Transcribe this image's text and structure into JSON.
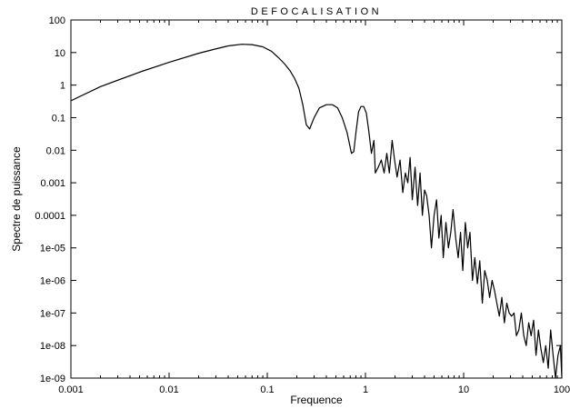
{
  "chart_data": {
    "type": "line",
    "title": "DEFOCALISATION",
    "xlabel": "Frequence",
    "ylabel": "Spectre de puissance",
    "xscale": "log",
    "yscale": "log",
    "xlim": [
      0.001,
      100
    ],
    "ylim": [
      1e-09,
      100
    ],
    "grid": false,
    "legend": "none",
    "x_ticks": [
      {
        "value": 0.001,
        "label": "0.001"
      },
      {
        "value": 0.01,
        "label": "0.01"
      },
      {
        "value": 0.1,
        "label": "0.1"
      },
      {
        "value": 1,
        "label": "1"
      },
      {
        "value": 10,
        "label": "10"
      },
      {
        "value": 100,
        "label": "100"
      }
    ],
    "y_ticks": [
      {
        "value": 100,
        "label": "100"
      },
      {
        "value": 10,
        "label": "10"
      },
      {
        "value": 1,
        "label": "1"
      },
      {
        "value": 0.1,
        "label": "0.1"
      },
      {
        "value": 0.01,
        "label": "0.01"
      },
      {
        "value": 0.001,
        "label": "0.001"
      },
      {
        "value": 0.0001,
        "label": "0.0001"
      },
      {
        "value": 1e-05,
        "label": "1e-05"
      },
      {
        "value": 1e-06,
        "label": "1e-06"
      },
      {
        "value": 1e-07,
        "label": "1e-07"
      },
      {
        "value": 1e-08,
        "label": "1e-08"
      },
      {
        "value": 1e-09,
        "label": "1e-09"
      }
    ],
    "series": [
      {
        "color": "#000000",
        "x": [
          0.001,
          0.002,
          0.005,
          0.01,
          0.02,
          0.03,
          0.04,
          0.055,
          0.07,
          0.09,
          0.11,
          0.13,
          0.15,
          0.17,
          0.19,
          0.21,
          0.23,
          0.25,
          0.27,
          0.3,
          0.34,
          0.4,
          0.46,
          0.52,
          0.58,
          0.65,
          0.72,
          0.76,
          0.8,
          0.85,
          0.9,
          0.96,
          1.02,
          1.08,
          1.15,
          1.22,
          1.26,
          1.35,
          1.45,
          1.55,
          1.65,
          1.75,
          1.87,
          1.98,
          2.1,
          2.25,
          2.4,
          2.55,
          2.7,
          2.85,
          3.0,
          3.2,
          3.4,
          3.6,
          3.8,
          4.0,
          4.2,
          4.45,
          4.7,
          5.0,
          5.3,
          5.6,
          5.9,
          6.2,
          6.6,
          7.0,
          7.4,
          7.8,
          8.3,
          8.8,
          9.3,
          9.8,
          10.4,
          11.0,
          11.6,
          12.3,
          13.0,
          13.8,
          14.6,
          15.5,
          16.4,
          17.4,
          18.4,
          19.5,
          20.6,
          21.8,
          23.1,
          24.5,
          26.0,
          27.5,
          29.1,
          30.8,
          32.6,
          34.5,
          36.5,
          38.7,
          41.0,
          43.4,
          46.0,
          48.7,
          51.6,
          54.6,
          57.8,
          61.2,
          64.8,
          68.6,
          72.7,
          77.0,
          81.5,
          86.3,
          91.4,
          96.8,
          100
        ],
        "y": [
          0.33,
          0.9,
          2.5,
          5,
          9.5,
          13,
          16,
          18,
          17.5,
          15,
          11,
          7,
          4.5,
          2.8,
          1.6,
          0.8,
          0.25,
          0.06,
          0.045,
          0.1,
          0.2,
          0.25,
          0.25,
          0.2,
          0.1,
          0.035,
          0.008,
          0.009,
          0.035,
          0.15,
          0.22,
          0.22,
          0.14,
          0.04,
          0.008,
          0.02,
          0.002,
          0.003,
          0.005,
          0.002,
          0.008,
          0.002,
          0.02,
          0.005,
          0.0015,
          0.005,
          0.0005,
          0.002,
          0.001,
          0.006,
          0.0003,
          0.003,
          0.0002,
          0.002,
          0.0001,
          0.0006,
          0.0004,
          0.0001,
          1e-05,
          0.0001,
          0.0003,
          2e-05,
          0.0001,
          5e-06,
          6e-05,
          1e-05,
          3e-05,
          0.00015,
          2e-05,
          5e-06,
          3e-05,
          2e-06,
          6e-05,
          1e-05,
          3e-05,
          1e-06,
          5e-06,
          8e-07,
          4e-06,
          2e-07,
          2e-06,
          1e-06,
          3e-07,
          1e-06,
          5e-07,
          2e-07,
          8e-08,
          3e-07,
          5e-08,
          2e-07,
          1e-07,
          8e-08,
          1e-07,
          2e-08,
          3e-08,
          1e-07,
          2e-08,
          1e-08,
          5e-08,
          2e-08,
          6e-08,
          5e-09,
          3e-08,
          8e-09,
          3e-09,
          1e-08,
          2e-09,
          3e-08,
          5e-09,
          1e-09,
          5e-09,
          1e-08,
          1e-09
        ]
      }
    ]
  }
}
